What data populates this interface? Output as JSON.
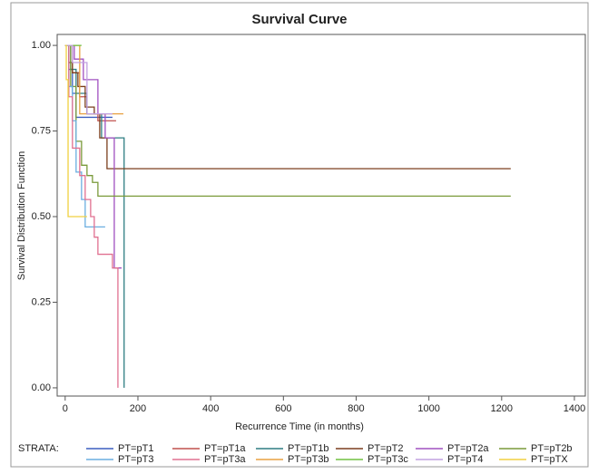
{
  "chart_data": {
    "type": "step",
    "title": "Survival Curve",
    "x_label": "Recurrence Time (in months)",
    "y_label": "Survival Distribution Function",
    "legend_title": "STRATA:",
    "xlim": [
      -22,
      1430
    ],
    "ylim": [
      -0.024,
      1.032
    ],
    "xticks": [
      0,
      200,
      400,
      600,
      800,
      1000,
      1200,
      1400
    ],
    "yticks": [
      {
        "value": 0,
        "label": "0.00"
      },
      {
        "value": 0.25,
        "label": "0.25"
      },
      {
        "value": 0.5,
        "label": "0.50"
      },
      {
        "value": 0.75,
        "label": "0.75"
      },
      {
        "value": 1,
        "label": "1.00"
      }
    ],
    "series": [
      {
        "name": "PT=pT1",
        "color": "#3b5fc0",
        "x": [
          0,
          10,
          20,
          30,
          130
        ],
        "values": [
          1,
          0.93,
          0.86,
          0.79,
          0.79
        ]
      },
      {
        "name": "PT=pT1a",
        "color": "#c0504d",
        "x": [
          0,
          20,
          40,
          60,
          90,
          140
        ],
        "values": [
          1,
          0.92,
          0.85,
          0.8,
          0.78,
          0.78
        ]
      },
      {
        "name": "PT=pT1b",
        "color": "#2e7d82",
        "x": [
          0,
          15,
          30,
          60,
          100,
          162
        ],
        "values": [
          1,
          0.93,
          0.86,
          0.8,
          0.73,
          0
        ]
      },
      {
        "name": "PT=pT2",
        "color": "#7b3f1e",
        "x": [
          0,
          10,
          20,
          35,
          55,
          80,
          95,
          115,
          1225
        ],
        "values": [
          1,
          0.95,
          0.92,
          0.88,
          0.82,
          0.8,
          0.73,
          0.64,
          0.64
        ]
      },
      {
        "name": "PT=pT2a",
        "color": "#a050c0",
        "x": [
          0,
          25,
          50,
          90,
          110,
          135,
          155
        ],
        "values": [
          1,
          0.96,
          0.9,
          0.8,
          0.73,
          0.35,
          0.35
        ]
      },
      {
        "name": "PT=pT2b",
        "color": "#7a9a3a",
        "x": [
          0,
          15,
          30,
          45,
          60,
          75,
          90,
          1225
        ],
        "values": [
          1,
          0.88,
          0.72,
          0.65,
          0.62,
          0.6,
          0.56,
          0.56
        ]
      },
      {
        "name": "PT=pT3",
        "color": "#6aaee0",
        "x": [
          0,
          10,
          20,
          30,
          45,
          55,
          110
        ],
        "values": [
          1,
          0.88,
          0.78,
          0.63,
          0.55,
          0.47,
          0.47
        ]
      },
      {
        "name": "PT=pT3a",
        "color": "#e07090",
        "x": [
          0,
          10,
          20,
          40,
          55,
          70,
          80,
          90,
          130,
          145
        ],
        "values": [
          1,
          0.85,
          0.7,
          0.62,
          0.55,
          0.5,
          0.44,
          0.39,
          0.35,
          0
        ]
      },
      {
        "name": "PT=pT3b",
        "color": "#e8a040",
        "x": [
          0,
          40,
          160
        ],
        "values": [
          1,
          0.8,
          0.8
        ]
      },
      {
        "name": "PT=pT3c",
        "color": "#70c040",
        "x": [
          0,
          45
        ],
        "values": [
          1,
          1
        ]
      },
      {
        "name": "PT=pT4",
        "color": "#c0a0e0",
        "x": [
          0,
          20,
          60,
          130
        ],
        "values": [
          1,
          0.95,
          0.8,
          0.8
        ]
      },
      {
        "name": "PT=pTX",
        "color": "#f0d040",
        "x": [
          0,
          3,
          8,
          60
        ],
        "values": [
          1,
          0.9,
          0.5,
          0.5
        ]
      }
    ]
  }
}
